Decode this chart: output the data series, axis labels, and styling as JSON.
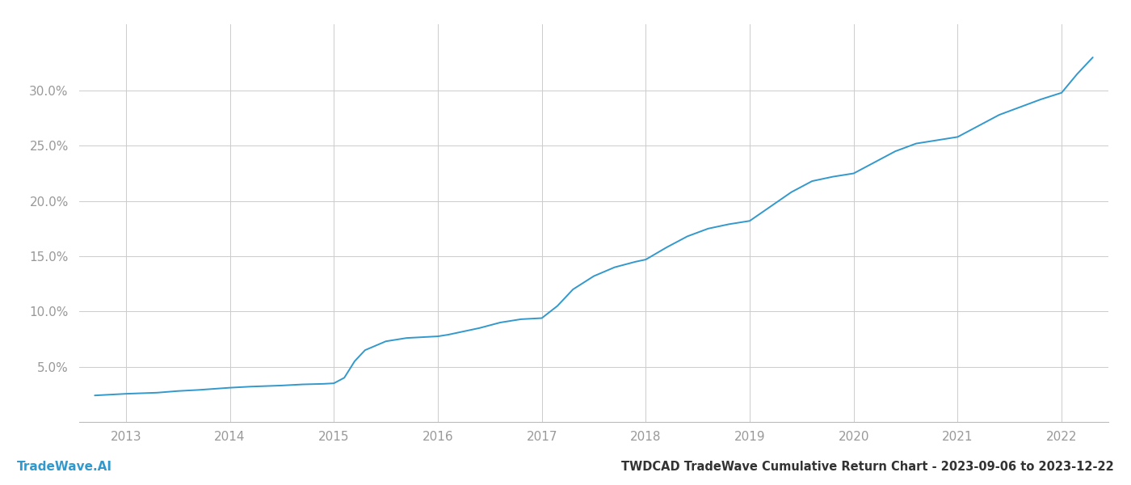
{
  "title": "TWDCAD TradeWave Cumulative Return Chart - 2023-09-06 to 2023-12-22",
  "watermark": "TradeWave.AI",
  "line_color": "#3399cc",
  "background_color": "#ffffff",
  "grid_color": "#cccccc",
  "x_years": [
    2013,
    2014,
    2015,
    2016,
    2017,
    2018,
    2019,
    2020,
    2021,
    2022
  ],
  "data_x": [
    2012.7,
    2012.8,
    2012.9,
    2013.0,
    2013.15,
    2013.3,
    2013.5,
    2013.7,
    2013.85,
    2014.0,
    2014.2,
    2014.5,
    2014.7,
    2014.9,
    2015.0,
    2015.1,
    2015.2,
    2015.3,
    2015.5,
    2015.7,
    2015.9,
    2016.0,
    2016.1,
    2016.2,
    2016.4,
    2016.6,
    2016.8,
    2017.0,
    2017.15,
    2017.3,
    2017.5,
    2017.7,
    2017.9,
    2018.0,
    2018.2,
    2018.4,
    2018.6,
    2018.8,
    2019.0,
    2019.2,
    2019.4,
    2019.6,
    2019.8,
    2020.0,
    2020.2,
    2020.4,
    2020.6,
    2020.8,
    2021.0,
    2021.2,
    2021.4,
    2021.6,
    2021.8,
    2022.0,
    2022.15,
    2022.3
  ],
  "data_y": [
    2.4,
    2.45,
    2.5,
    2.55,
    2.6,
    2.65,
    2.8,
    2.9,
    3.0,
    3.1,
    3.2,
    3.3,
    3.4,
    3.45,
    3.5,
    4.0,
    5.5,
    6.5,
    7.3,
    7.6,
    7.7,
    7.75,
    7.9,
    8.1,
    8.5,
    9.0,
    9.3,
    9.4,
    10.5,
    12.0,
    13.2,
    14.0,
    14.5,
    14.7,
    15.8,
    16.8,
    17.5,
    17.9,
    18.2,
    19.5,
    20.8,
    21.8,
    22.2,
    22.5,
    23.5,
    24.5,
    25.2,
    25.5,
    25.8,
    26.8,
    27.8,
    28.5,
    29.2,
    29.8,
    31.5,
    33.0
  ],
  "xlim": [
    2012.55,
    2022.45
  ],
  "ylim": [
    0.0,
    36.0
  ],
  "yticks": [
    5.0,
    10.0,
    15.0,
    20.0,
    25.0,
    30.0
  ],
  "tick_color": "#999999",
  "title_fontsize": 10.5,
  "watermark_fontsize": 11,
  "axis_fontsize": 11
}
